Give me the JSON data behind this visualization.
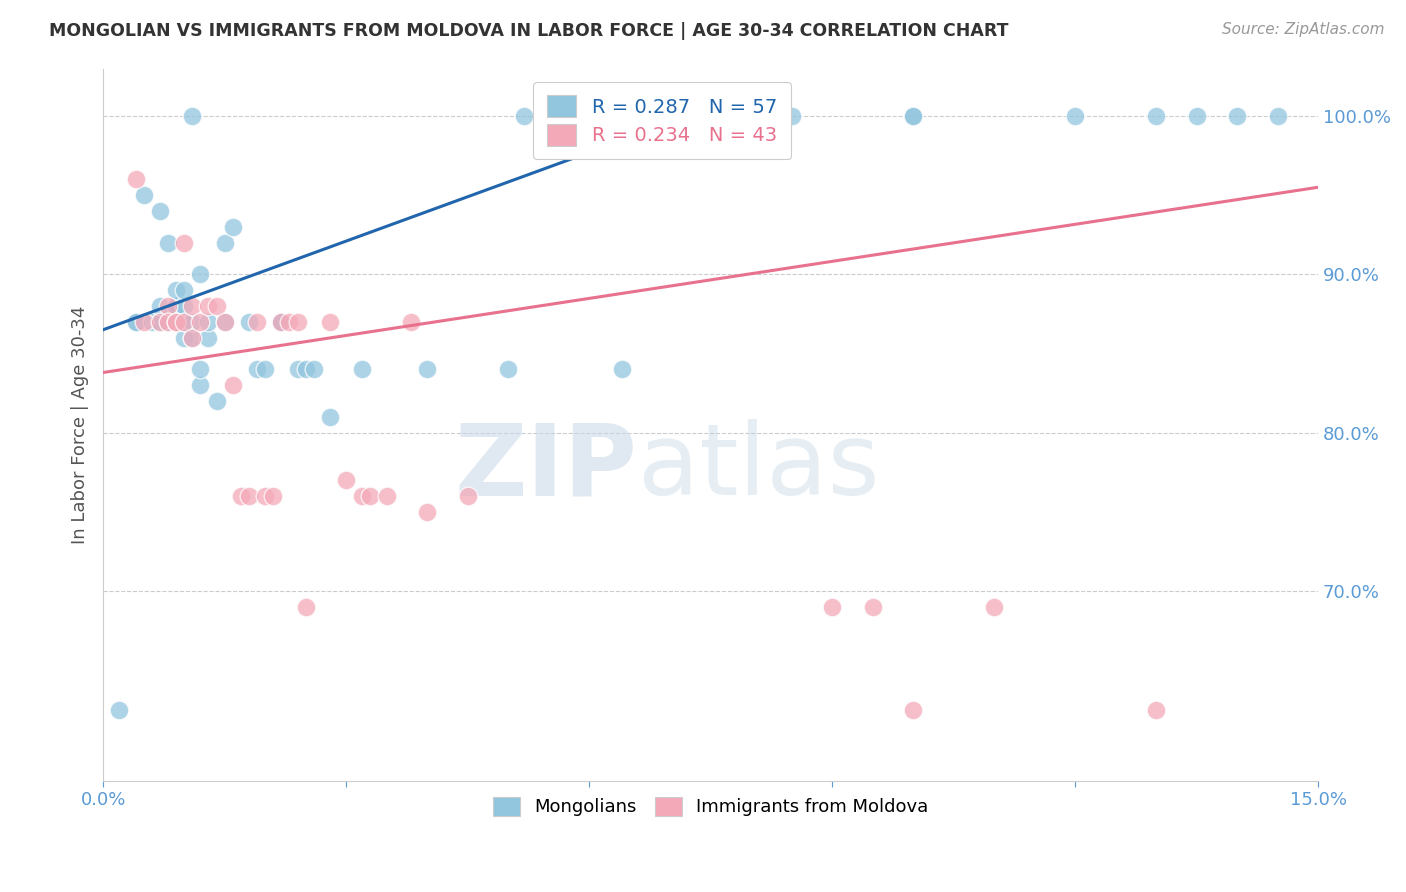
{
  "title": "MONGOLIAN VS IMMIGRANTS FROM MOLDOVA IN LABOR FORCE | AGE 30-34 CORRELATION CHART",
  "source": "Source: ZipAtlas.com",
  "ylabel": "In Labor Force | Age 30-34",
  "xlim": [
    0.0,
    0.15
  ],
  "ylim": [
    0.58,
    1.03
  ],
  "xticks": [
    0.0,
    0.03,
    0.06,
    0.09,
    0.12,
    0.15
  ],
  "xticklabels": [
    "0.0%",
    "",
    "",
    "",
    "",
    "15.0%"
  ],
  "yticks": [
    0.7,
    0.8,
    0.9,
    1.0
  ],
  "yticklabels": [
    "70.0%",
    "80.0%",
    "90.0%",
    "100.0%"
  ],
  "blue_R": 0.287,
  "blue_N": 57,
  "pink_R": 0.234,
  "pink_N": 43,
  "blue_color": "#92c5de",
  "pink_color": "#f4a9b8",
  "blue_line_color": "#2166ac",
  "pink_line_color": "#e8718d",
  "watermark_zip": "ZIP",
  "watermark_atlas": "atlas",
  "blue_scatter_x": [
    0.002,
    0.004,
    0.004,
    0.005,
    0.006,
    0.007,
    0.007,
    0.007,
    0.008,
    0.008,
    0.009,
    0.009,
    0.009,
    0.009,
    0.01,
    0.01,
    0.01,
    0.01,
    0.011,
    0.011,
    0.011,
    0.012,
    0.012,
    0.012,
    0.013,
    0.013,
    0.014,
    0.015,
    0.015,
    0.016,
    0.018,
    0.019,
    0.02,
    0.022,
    0.022,
    0.024,
    0.025,
    0.026,
    0.028,
    0.032,
    0.04,
    0.05,
    0.052,
    0.06,
    0.062,
    0.064,
    0.075,
    0.076,
    0.077,
    0.085,
    0.1,
    0.1,
    0.12,
    0.13,
    0.135,
    0.14,
    0.145
  ],
  "blue_scatter_y": [
    0.625,
    0.87,
    0.87,
    0.95,
    0.87,
    0.87,
    0.88,
    0.94,
    0.87,
    0.92,
    0.87,
    0.88,
    0.88,
    0.89,
    0.86,
    0.87,
    0.88,
    0.89,
    0.86,
    0.87,
    1.0,
    0.83,
    0.84,
    0.9,
    0.86,
    0.87,
    0.82,
    0.87,
    0.92,
    0.93,
    0.87,
    0.84,
    0.84,
    0.87,
    0.87,
    0.84,
    0.84,
    0.84,
    0.81,
    0.84,
    0.84,
    0.84,
    1.0,
    1.0,
    1.0,
    0.84,
    1.0,
    1.0,
    1.0,
    1.0,
    1.0,
    1.0,
    1.0,
    1.0,
    1.0,
    1.0,
    1.0
  ],
  "pink_scatter_x": [
    0.004,
    0.005,
    0.007,
    0.008,
    0.008,
    0.009,
    0.009,
    0.01,
    0.01,
    0.011,
    0.011,
    0.012,
    0.013,
    0.014,
    0.015,
    0.016,
    0.017,
    0.018,
    0.019,
    0.02,
    0.021,
    0.022,
    0.023,
    0.024,
    0.025,
    0.028,
    0.03,
    0.032,
    0.033,
    0.035,
    0.038,
    0.04,
    0.045,
    0.06,
    0.065,
    0.07,
    0.075,
    0.08,
    0.09,
    0.095,
    0.1,
    0.11,
    0.13
  ],
  "pink_scatter_y": [
    0.96,
    0.87,
    0.87,
    0.88,
    0.87,
    0.87,
    0.87,
    0.87,
    0.92,
    0.86,
    0.88,
    0.87,
    0.88,
    0.88,
    0.87,
    0.83,
    0.76,
    0.76,
    0.87,
    0.76,
    0.76,
    0.87,
    0.87,
    0.87,
    0.69,
    0.87,
    0.77,
    0.76,
    0.76,
    0.76,
    0.87,
    0.75,
    0.76,
    1.0,
    1.0,
    1.0,
    1.0,
    1.0,
    0.69,
    0.69,
    0.625,
    0.69,
    0.625
  ],
  "blue_trend_x": [
    0.0,
    0.075
  ],
  "blue_trend_y": [
    0.865,
    1.005
  ],
  "pink_trend_x": [
    0.0,
    0.15
  ],
  "pink_trend_y": [
    0.838,
    0.955
  ]
}
